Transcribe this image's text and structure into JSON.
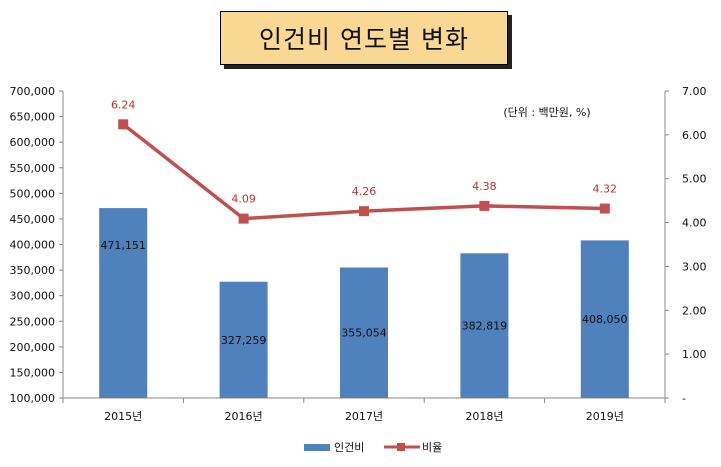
{
  "title": "인건비 연도별 변화",
  "unit_note": "(단위 : 백만원, %)",
  "colors": {
    "bar": "#4f81bd",
    "line": "#c0504d",
    "title_bg": "#f8d893"
  },
  "chart_data": {
    "type": "bar",
    "categories": [
      "2015년",
      "2016년",
      "2017년",
      "2018년",
      "2019년"
    ],
    "series": [
      {
        "name": "인건비",
        "type": "bar",
        "axis": "left",
        "values": [
          471151,
          327259,
          355054,
          382819,
          408050
        ],
        "labels": [
          "471,151",
          "327,259",
          "355,054",
          "382,819",
          "408,050"
        ]
      },
      {
        "name": "비율",
        "type": "line",
        "axis": "right",
        "values": [
          6.24,
          4.09,
          4.26,
          4.38,
          4.32
        ],
        "labels": [
          "6.24",
          "4.09",
          "4.26",
          "4.38",
          "4.32"
        ]
      }
    ],
    "y_left": {
      "min": 100000,
      "max": 700000,
      "ticks": [
        "100,000",
        "150,000",
        "200,000",
        "250,000",
        "300,000",
        "350,000",
        "400,000",
        "450,000",
        "500,000",
        "550,000",
        "600,000",
        "650,000",
        "700,000"
      ]
    },
    "y_right": {
      "min": 0,
      "max": 7,
      "ticks": [
        "-",
        "1.00",
        "2.00",
        "3.00",
        "4.00",
        "5.00",
        "6.00",
        "7.00"
      ]
    },
    "legend_position": "bottom",
    "grid": false
  }
}
